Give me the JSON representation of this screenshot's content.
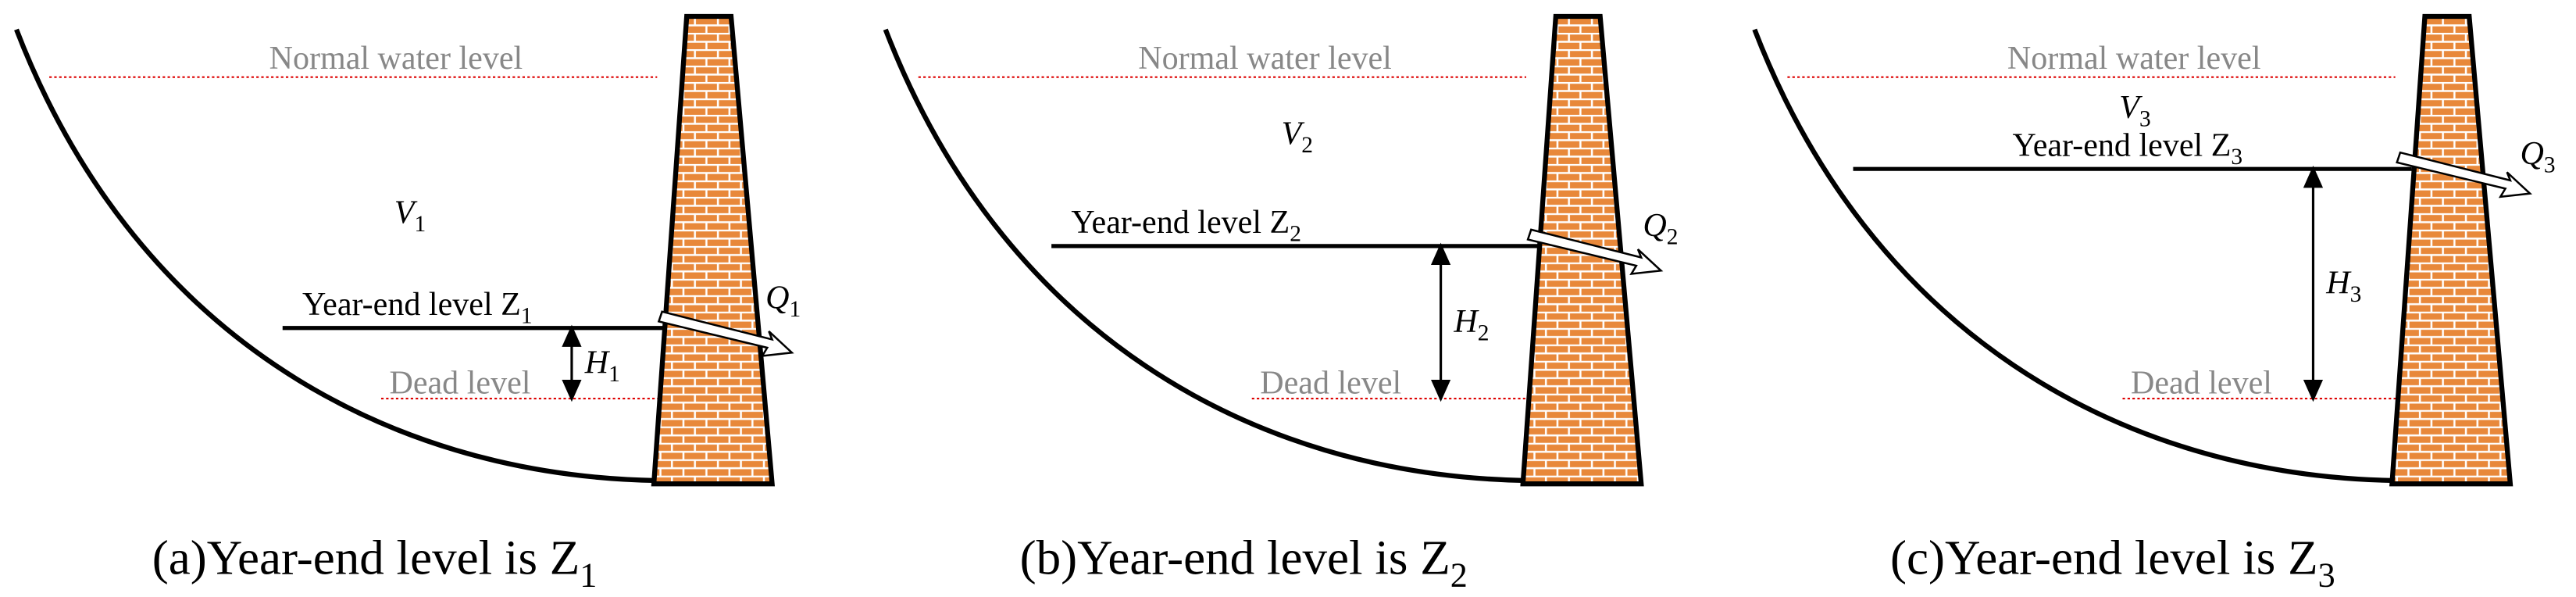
{
  "panels": [
    {
      "normal": "Normal water level",
      "volume": {
        "main": "V",
        "sub": "1"
      },
      "year_end": {
        "main": "Year-end level Z",
        "sub": "1"
      },
      "flow": {
        "main": "Q",
        "sub": "1"
      },
      "head": {
        "main": "H",
        "sub": "1"
      },
      "dead": "Dead level",
      "caption": {
        "main": "(a)Year-end level is Z",
        "sub": "1"
      }
    },
    {
      "normal": "Normal water level",
      "volume": {
        "main": "V",
        "sub": "2"
      },
      "year_end": {
        "main": "Year-end level Z",
        "sub": "2"
      },
      "flow": {
        "main": "Q",
        "sub": "2"
      },
      "head": {
        "main": "H",
        "sub": "2"
      },
      "dead": "Dead level",
      "caption": {
        "main": "(b)Year-end level is Z",
        "sub": "2"
      }
    },
    {
      "normal": "Normal water level",
      "volume": {
        "main": "V",
        "sub": "3"
      },
      "year_end": {
        "main": "Year-end level Z",
        "sub": "3"
      },
      "flow": {
        "main": "Q",
        "sub": "3"
      },
      "head": {
        "main": "H",
        "sub": "3"
      },
      "dead": "Dead level",
      "caption": {
        "main": "(c)Year-end level is Z",
        "sub": "3"
      }
    }
  ]
}
